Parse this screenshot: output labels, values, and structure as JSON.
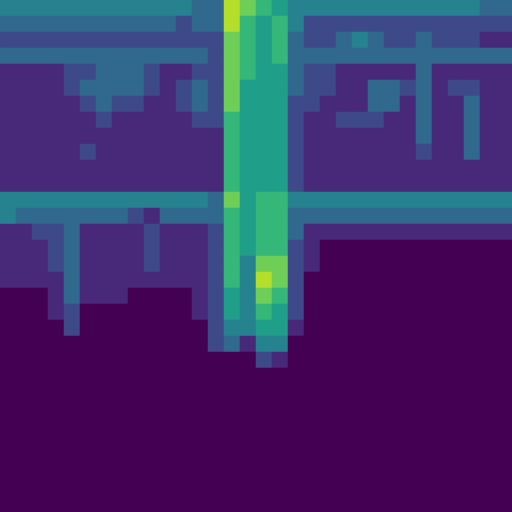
{
  "chart_data": {
    "type": "heatmap",
    "tick_labels": false,
    "color_range": [
      0,
      9
    ],
    "cells": [
      [
        4,
        4,
        4,
        4,
        4,
        4,
        4,
        4,
        4,
        4,
        4,
        4,
        3,
        3,
        8,
        7,
        6,
        5,
        4,
        4,
        4,
        4,
        4,
        4,
        4,
        4,
        4,
        4,
        4,
        4,
        3,
        3
      ],
      [
        3,
        3,
        3,
        3,
        3,
        3,
        3,
        3,
        3,
        3,
        3,
        2,
        3,
        3,
        8,
        6,
        5,
        6,
        4,
        2,
        2,
        2,
        2,
        2,
        2,
        2,
        2,
        2,
        2,
        2,
        2,
        2
      ],
      [
        2,
        2,
        2,
        2,
        2,
        2,
        2,
        2,
        2,
        2,
        2,
        2,
        2,
        2,
        7,
        6,
        5,
        6,
        3,
        2,
        2,
        3,
        4,
        3,
        2,
        2,
        3,
        2,
        2,
        2,
        1,
        1
      ],
      [
        3,
        3,
        3,
        3,
        3,
        3,
        3,
        3,
        3,
        3,
        3,
        3,
        3,
        2,
        7,
        6,
        5,
        6,
        3,
        3,
        3,
        3,
        3,
        3,
        3,
        3,
        3,
        3,
        3,
        3,
        3,
        3
      ],
      [
        1,
        1,
        1,
        1,
        2,
        2,
        3,
        3,
        3,
        2,
        1,
        1,
        2,
        2,
        7,
        6,
        5,
        5,
        3,
        2,
        2,
        1,
        1,
        1,
        1,
        1,
        3,
        1,
        1,
        1,
        1,
        1
      ],
      [
        1,
        1,
        1,
        1,
        2,
        3,
        3,
        3,
        3,
        2,
        1,
        2,
        3,
        2,
        7,
        5,
        5,
        5,
        3,
        2,
        2,
        1,
        1,
        3,
        3,
        2,
        3,
        1,
        2,
        2,
        1,
        1
      ],
      [
        1,
        1,
        1,
        1,
        1,
        2,
        3,
        2,
        2,
        1,
        1,
        2,
        3,
        2,
        7,
        5,
        5,
        5,
        2,
        2,
        1,
        1,
        1,
        3,
        3,
        1,
        3,
        1,
        1,
        3,
        1,
        1
      ],
      [
        1,
        1,
        1,
        1,
        1,
        1,
        2,
        1,
        1,
        1,
        1,
        1,
        2,
        2,
        6,
        5,
        5,
        5,
        2,
        1,
        1,
        2,
        2,
        2,
        1,
        1,
        3,
        1,
        1,
        3,
        1,
        1
      ],
      [
        1,
        1,
        1,
        1,
        1,
        1,
        1,
        1,
        1,
        1,
        1,
        1,
        1,
        1,
        6,
        5,
        5,
        5,
        2,
        1,
        1,
        1,
        1,
        1,
        1,
        1,
        3,
        1,
        1,
        3,
        1,
        1
      ],
      [
        1,
        1,
        1,
        1,
        1,
        2,
        1,
        1,
        1,
        1,
        1,
        1,
        1,
        1,
        6,
        5,
        5,
        5,
        2,
        1,
        1,
        1,
        1,
        1,
        1,
        1,
        2,
        1,
        1,
        3,
        1,
        1
      ],
      [
        1,
        1,
        1,
        1,
        1,
        1,
        1,
        1,
        1,
        1,
        1,
        1,
        1,
        1,
        6,
        5,
        5,
        5,
        2,
        1,
        1,
        1,
        1,
        1,
        1,
        1,
        1,
        1,
        1,
        1,
        1,
        1
      ],
      [
        1,
        1,
        1,
        1,
        1,
        1,
        1,
        1,
        1,
        1,
        1,
        1,
        1,
        1,
        6,
        5,
        5,
        5,
        2,
        1,
        1,
        1,
        1,
        1,
        1,
        1,
        1,
        1,
        1,
        1,
        1,
        1
      ],
      [
        4,
        4,
        4,
        4,
        4,
        4,
        4,
        4,
        4,
        4,
        4,
        4,
        4,
        3,
        7,
        5,
        6,
        6,
        4,
        4,
        4,
        4,
        4,
        4,
        4,
        4,
        4,
        4,
        4,
        4,
        4,
        4
      ],
      [
        4,
        3,
        3,
        3,
        3,
        3,
        3,
        3,
        2,
        1,
        3,
        3,
        3,
        3,
        6,
        5,
        6,
        6,
        3,
        3,
        3,
        3,
        3,
        3,
        3,
        3,
        3,
        3,
        3,
        3,
        3,
        3
      ],
      [
        1,
        1,
        2,
        2,
        3,
        1,
        1,
        1,
        1,
        2,
        1,
        1,
        1,
        2,
        6,
        5,
        6,
        6,
        3,
        1,
        1,
        1,
        1,
        1,
        1,
        1,
        1,
        1,
        1,
        1,
        1,
        1
      ],
      [
        1,
        1,
        1,
        2,
        3,
        1,
        1,
        1,
        1,
        2,
        1,
        1,
        1,
        2,
        6,
        5,
        6,
        6,
        2,
        1,
        0,
        0,
        0,
        0,
        0,
        0,
        0,
        0,
        0,
        0,
        0,
        0
      ],
      [
        1,
        1,
        1,
        2,
        3,
        1,
        1,
        1,
        1,
        2,
        1,
        1,
        1,
        2,
        6,
        4,
        7,
        7,
        2,
        1,
        0,
        0,
        0,
        0,
        0,
        0,
        0,
        0,
        0,
        0,
        0,
        0
      ],
      [
        1,
        1,
        1,
        1,
        3,
        1,
        1,
        1,
        1,
        1,
        1,
        1,
        1,
        2,
        6,
        4,
        8,
        7,
        2,
        0,
        0,
        0,
        0,
        0,
        0,
        0,
        0,
        0,
        0,
        0,
        0,
        0
      ],
      [
        0,
        0,
        0,
        1,
        3,
        1,
        1,
        1,
        0,
        0,
        0,
        0,
        1,
        2,
        5,
        4,
        7,
        6,
        2,
        0,
        0,
        0,
        0,
        0,
        0,
        0,
        0,
        0,
        0,
        0,
        0,
        0
      ],
      [
        0,
        0,
        0,
        1,
        2,
        0,
        0,
        0,
        0,
        0,
        0,
        0,
        1,
        2,
        5,
        4,
        6,
        5,
        2,
        0,
        0,
        0,
        0,
        0,
        0,
        0,
        0,
        0,
        0,
        0,
        0,
        0
      ],
      [
        0,
        0,
        0,
        0,
        2,
        0,
        0,
        0,
        0,
        0,
        0,
        0,
        0,
        2,
        4,
        4,
        5,
        5,
        1,
        0,
        0,
        0,
        0,
        0,
        0,
        0,
        0,
        0,
        0,
        0,
        0,
        0
      ],
      [
        0,
        0,
        0,
        0,
        0,
        0,
        0,
        0,
        0,
        0,
        0,
        0,
        0,
        2,
        3,
        1,
        4,
        4,
        0,
        0,
        0,
        0,
        0,
        0,
        0,
        0,
        0,
        0,
        0,
        0,
        0,
        0
      ],
      [
        0,
        0,
        0,
        0,
        0,
        0,
        0,
        0,
        0,
        0,
        0,
        0,
        0,
        0,
        0,
        0,
        2,
        1,
        0,
        0,
        0,
        0,
        0,
        0,
        0,
        0,
        0,
        0,
        0,
        0,
        0,
        0
      ],
      [
        0,
        0,
        0,
        0,
        0,
        0,
        0,
        0,
        0,
        0,
        0,
        0,
        0,
        0,
        0,
        0,
        0,
        0,
        0,
        0,
        0,
        0,
        0,
        0,
        0,
        0,
        0,
        0,
        0,
        0,
        0,
        0
      ],
      [
        0,
        0,
        0,
        0,
        0,
        0,
        0,
        0,
        0,
        0,
        0,
        0,
        0,
        0,
        0,
        0,
        0,
        0,
        0,
        0,
        0,
        0,
        0,
        0,
        0,
        0,
        0,
        0,
        0,
        0,
        0,
        0
      ],
      [
        0,
        0,
        0,
        0,
        0,
        0,
        0,
        0,
        0,
        0,
        0,
        0,
        0,
        0,
        0,
        0,
        0,
        0,
        0,
        0,
        0,
        0,
        0,
        0,
        0,
        0,
        0,
        0,
        0,
        0,
        0,
        0
      ],
      [
        0,
        0,
        0,
        0,
        0,
        0,
        0,
        0,
        0,
        0,
        0,
        0,
        0,
        0,
        0,
        0,
        0,
        0,
        0,
        0,
        0,
        0,
        0,
        0,
        0,
        0,
        0,
        0,
        0,
        0,
        0,
        0
      ],
      [
        0,
        0,
        0,
        0,
        0,
        0,
        0,
        0,
        0,
        0,
        0,
        0,
        0,
        0,
        0,
        0,
        0,
        0,
        0,
        0,
        0,
        0,
        0,
        0,
        0,
        0,
        0,
        0,
        0,
        0,
        0,
        0
      ],
      [
        0,
        0,
        0,
        0,
        0,
        0,
        0,
        0,
        0,
        0,
        0,
        0,
        0,
        0,
        0,
        0,
        0,
        0,
        0,
        0,
        0,
        0,
        0,
        0,
        0,
        0,
        0,
        0,
        0,
        0,
        0,
        0
      ],
      [
        0,
        0,
        0,
        0,
        0,
        0,
        0,
        0,
        0,
        0,
        0,
        0,
        0,
        0,
        0,
        0,
        0,
        0,
        0,
        0,
        0,
        0,
        0,
        0,
        0,
        0,
        0,
        0,
        0,
        0,
        0,
        0
      ],
      [
        0,
        0,
        0,
        0,
        0,
        0,
        0,
        0,
        0,
        0,
        0,
        0,
        0,
        0,
        0,
        0,
        0,
        0,
        0,
        0,
        0,
        0,
        0,
        0,
        0,
        0,
        0,
        0,
        0,
        0,
        0,
        0
      ],
      [
        0,
        0,
        0,
        0,
        0,
        0,
        0,
        0,
        0,
        0,
        0,
        0,
        0,
        0,
        0,
        0,
        0,
        0,
        0,
        0,
        0,
        0,
        0,
        0,
        0,
        0,
        0,
        0,
        0,
        0,
        0,
        0
      ]
    ]
  }
}
